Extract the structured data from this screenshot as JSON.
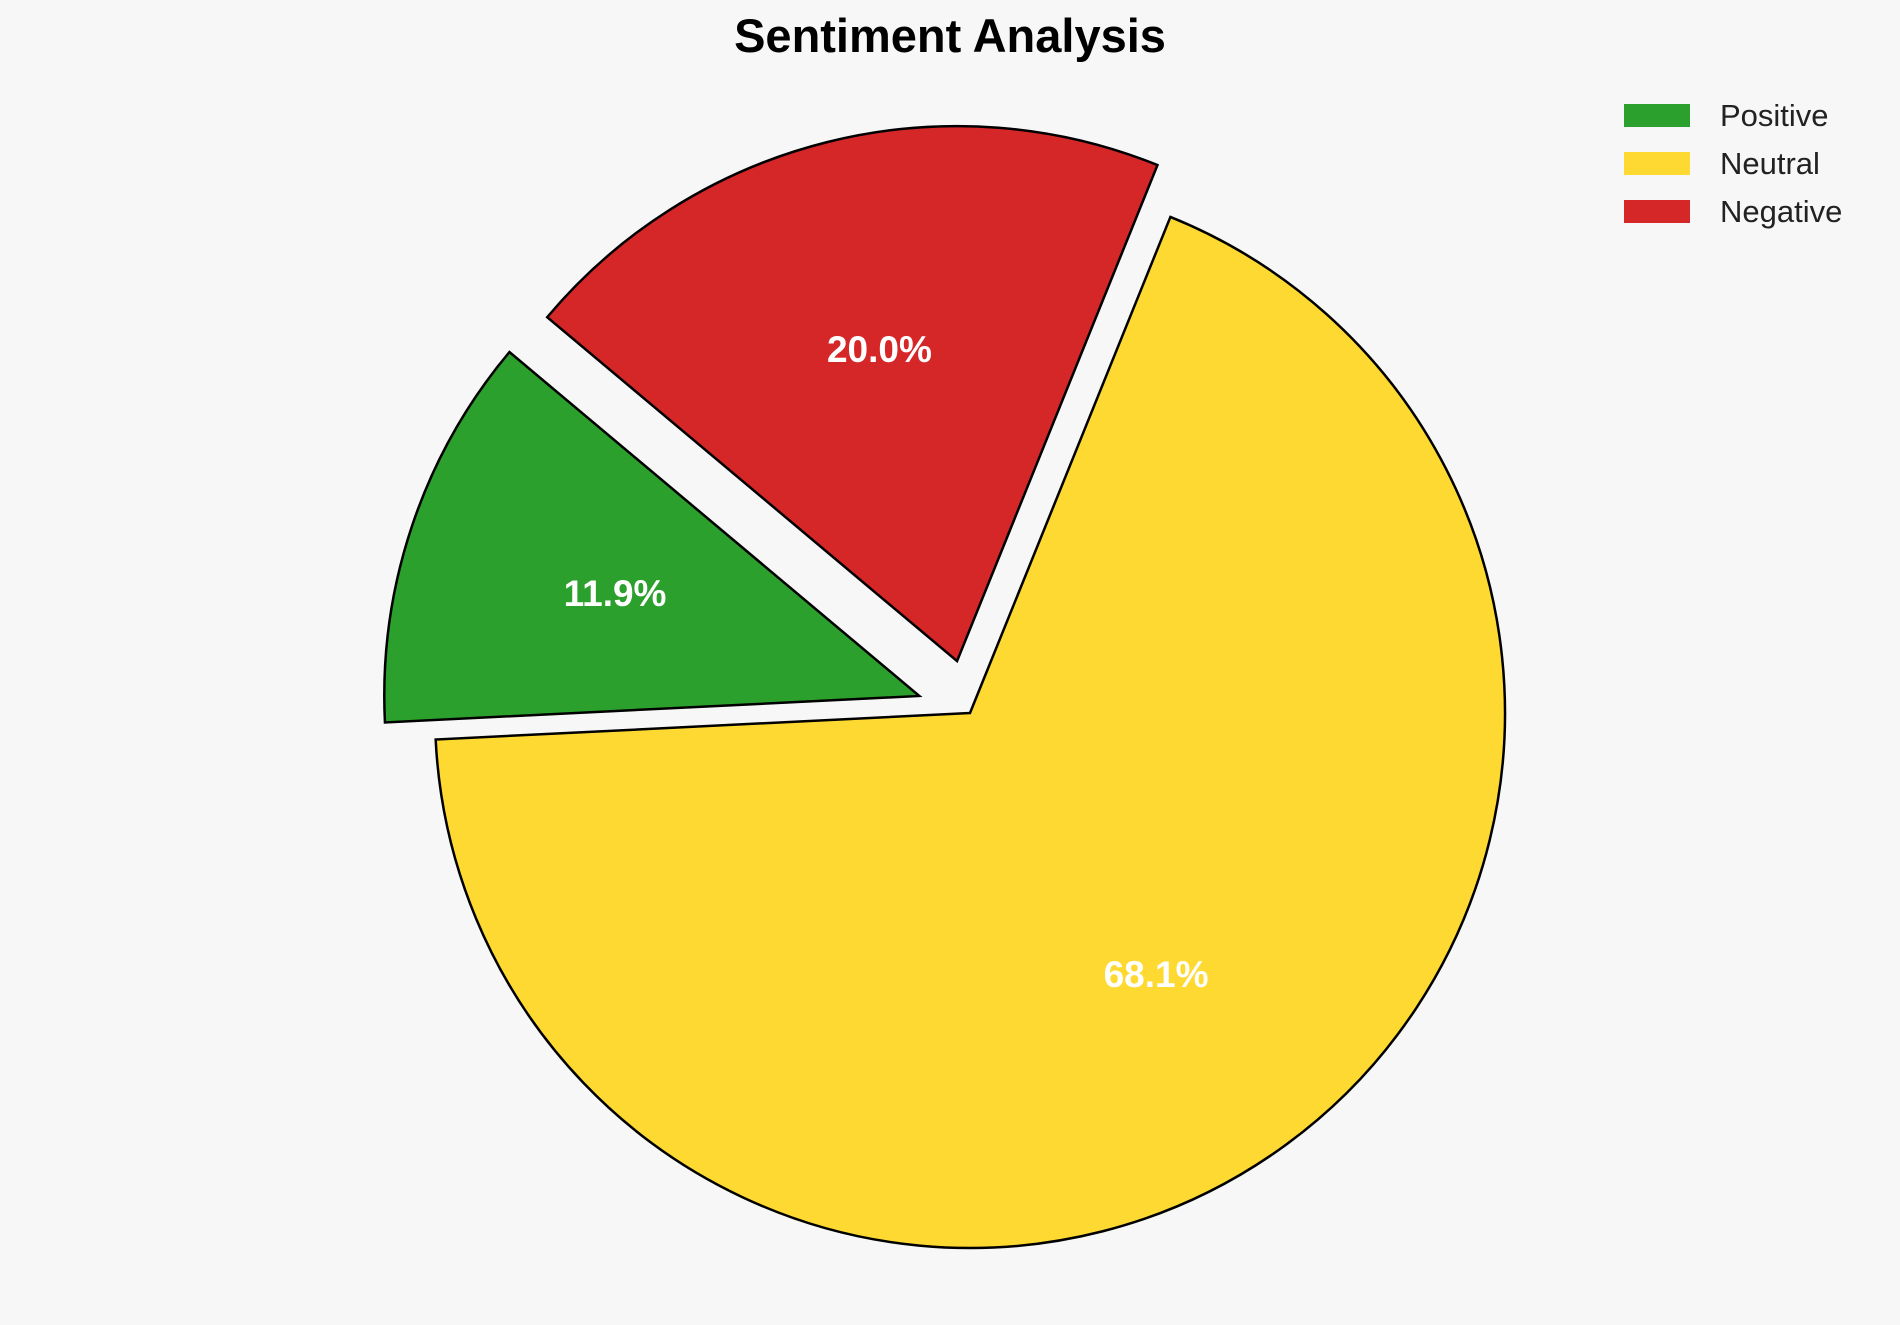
{
  "chart_data": {
    "type": "pie",
    "title": "Sentiment Analysis",
    "slices": [
      {
        "label": "Positive",
        "value": 11.9,
        "display": "11.9%",
        "color": "#2ca02c",
        "exploded": true
      },
      {
        "label": "Neutral",
        "value": 68.1,
        "display": "68.1%",
        "color": "#fdd931",
        "exploded": false
      },
      {
        "label": "Negative",
        "value": 20.0,
        "display": "20.0%",
        "color": "#d62728",
        "exploded": true
      }
    ],
    "legend": {
      "placement": "top-right",
      "entries": [
        "Positive",
        "Neutral",
        "Negative"
      ]
    },
    "label_color": "#ffffff",
    "edge_color": "#000000",
    "background": "#f7f7f7"
  }
}
